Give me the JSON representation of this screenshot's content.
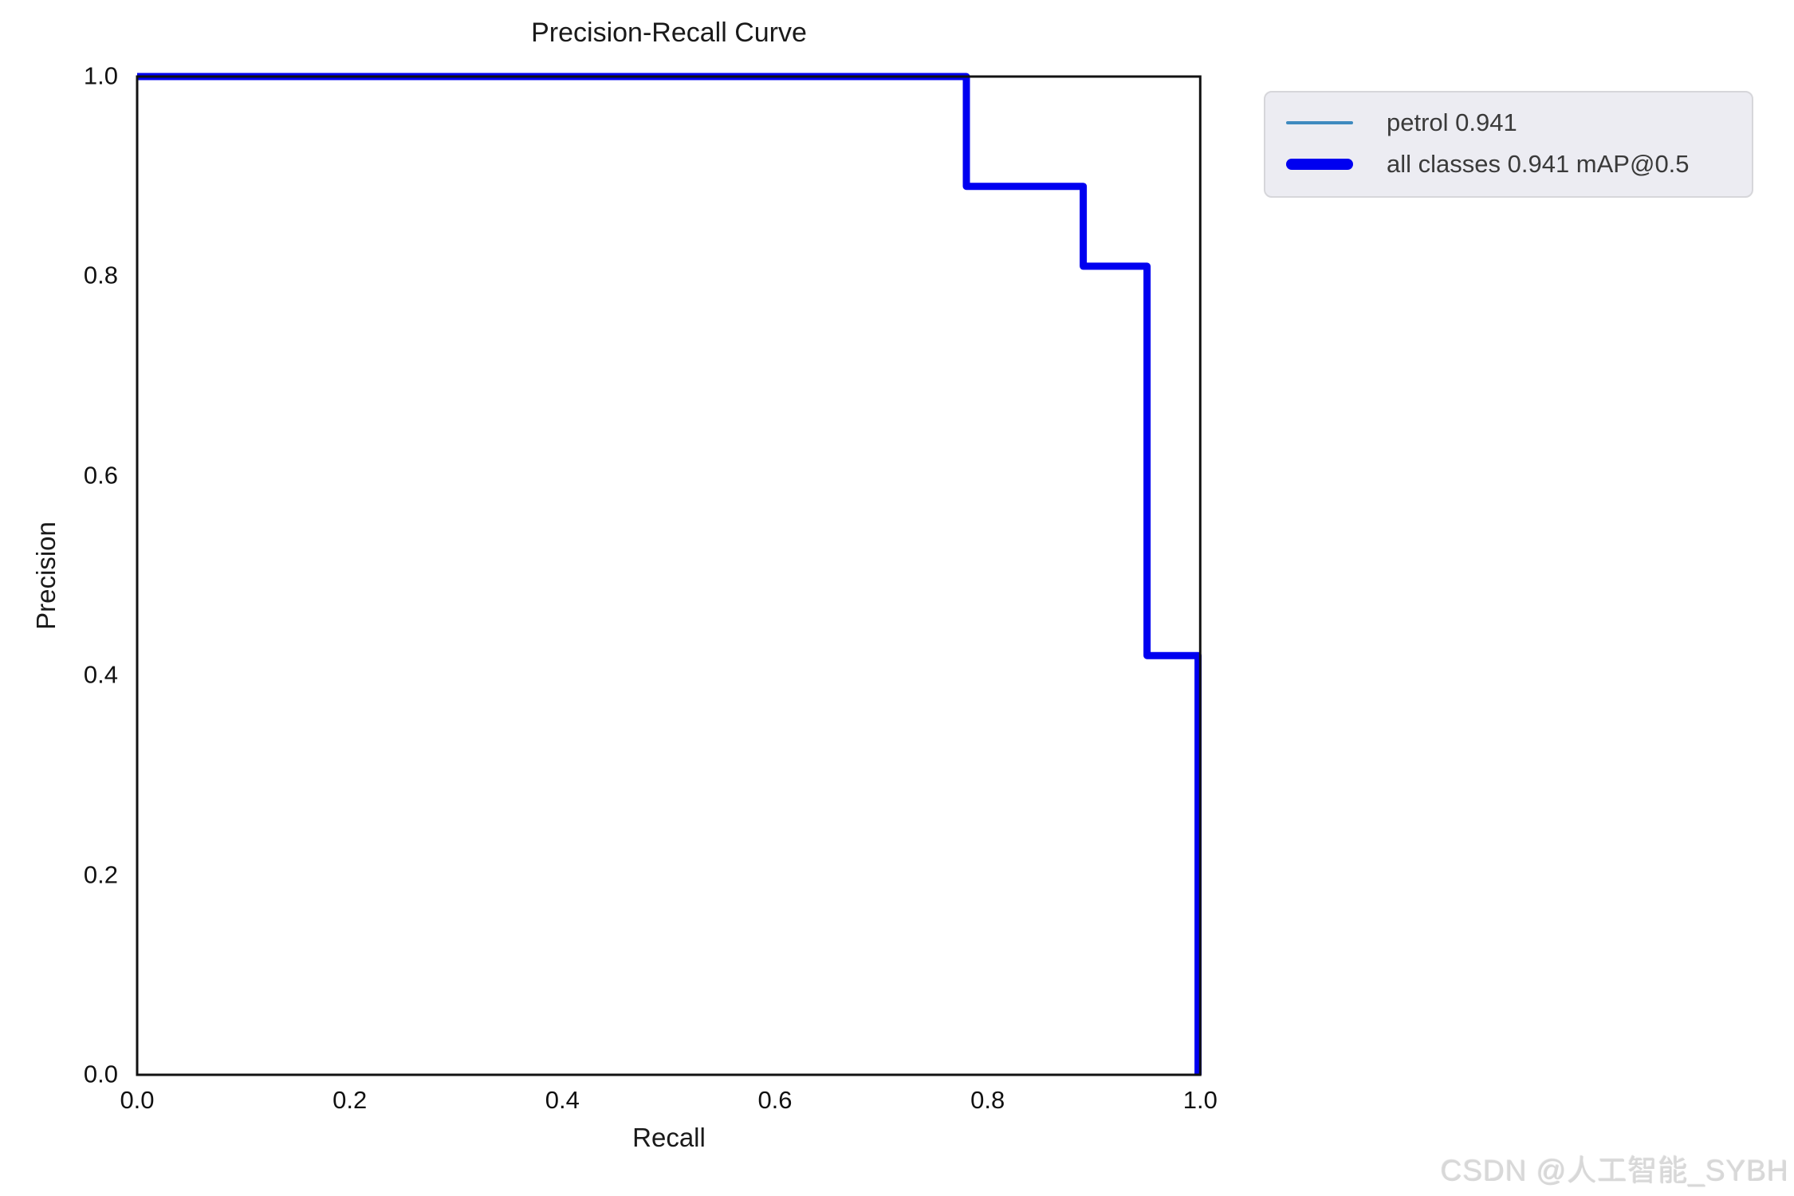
{
  "title": "Precision-Recall Curve",
  "watermark": "CSDN @人工智能_SYBH",
  "legend": {
    "items": [
      {
        "label": "petrol 0.941",
        "color": "#3e8abf",
        "thickness": "thin"
      },
      {
        "label": "all classes 0.941 mAP@0.5",
        "color": "#0000f0",
        "thickness": "thick"
      }
    ]
  },
  "chart_data": {
    "type": "line",
    "subtype": "step-precision-recall",
    "title": "Precision-Recall Curve",
    "xlabel": "Recall",
    "ylabel": "Precision",
    "xlim": [
      0.0,
      1.0
    ],
    "ylim": [
      0.0,
      1.0
    ],
    "x_tick_labels": [
      "0.0",
      "0.2",
      "0.4",
      "0.6",
      "0.8",
      "1.0"
    ],
    "y_tick_labels": [
      "0.0",
      "0.2",
      "0.4",
      "0.6",
      "0.8",
      "1.0"
    ],
    "grid": false,
    "legend_position": "outside upper right",
    "series": [
      {
        "name": "petrol 0.941",
        "color": "#3e8abf",
        "linewidth": 3,
        "points": [
          [
            0.0,
            1.0
          ],
          [
            0.78,
            1.0
          ],
          [
            0.78,
            0.89
          ],
          [
            0.89,
            0.89
          ],
          [
            0.89,
            0.81
          ],
          [
            0.95,
            0.81
          ],
          [
            0.95,
            0.42
          ],
          [
            0.998,
            0.42
          ],
          [
            0.998,
            0.0
          ]
        ]
      },
      {
        "name": "all classes 0.941 mAP@0.5",
        "color": "#0000f0",
        "linewidth": 9,
        "points": [
          [
            0.0,
            1.0
          ],
          [
            0.78,
            1.0
          ],
          [
            0.78,
            0.89
          ],
          [
            0.89,
            0.89
          ],
          [
            0.89,
            0.81
          ],
          [
            0.95,
            0.81
          ],
          [
            0.95,
            0.42
          ],
          [
            0.998,
            0.42
          ],
          [
            0.998,
            0.0
          ]
        ]
      }
    ]
  }
}
